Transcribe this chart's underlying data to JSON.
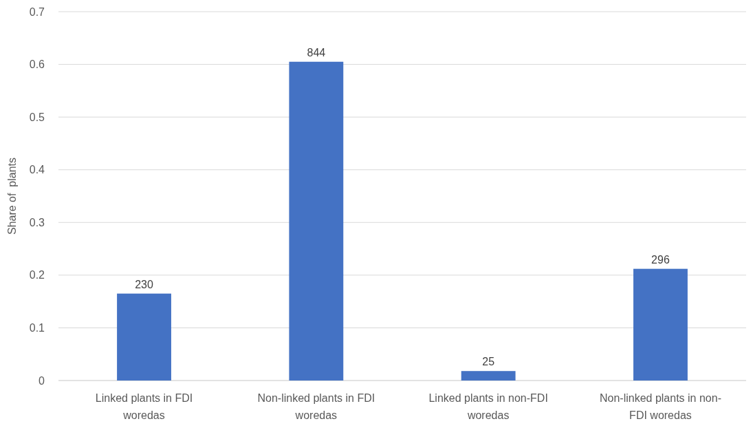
{
  "chart_data": {
    "type": "bar",
    "ylabel": "Share of  plants",
    "categories": [
      "Linked plants in FDI woredas",
      "Non-linked plants in FDI woredas",
      "Linked plants in non-FDI woredas",
      "Non-linked plants in non-FDI woredas"
    ],
    "values": [
      0.165,
      0.605,
      0.018,
      0.212
    ],
    "annotations": [
      {
        "text": "230",
        "x": "Linked plants in FDI woredas",
        "y": 0.165
      },
      {
        "text": "844",
        "x": "Non-linked plants in FDI woredas",
        "y": 0.605
      },
      {
        "text": "25",
        "x": "Linked plants in non-FDI woredas",
        "y": 0.018
      },
      {
        "text": "296",
        "x": "Non-linked plants in non-FDI woredas",
        "y": 0.212
      }
    ],
    "color": "#4472c4",
    "ylim": [
      0,
      0.7
    ],
    "yticks": [
      0,
      0.1,
      0.2,
      0.3,
      0.4,
      0.5,
      0.6,
      0.7
    ],
    "grid": "y"
  }
}
